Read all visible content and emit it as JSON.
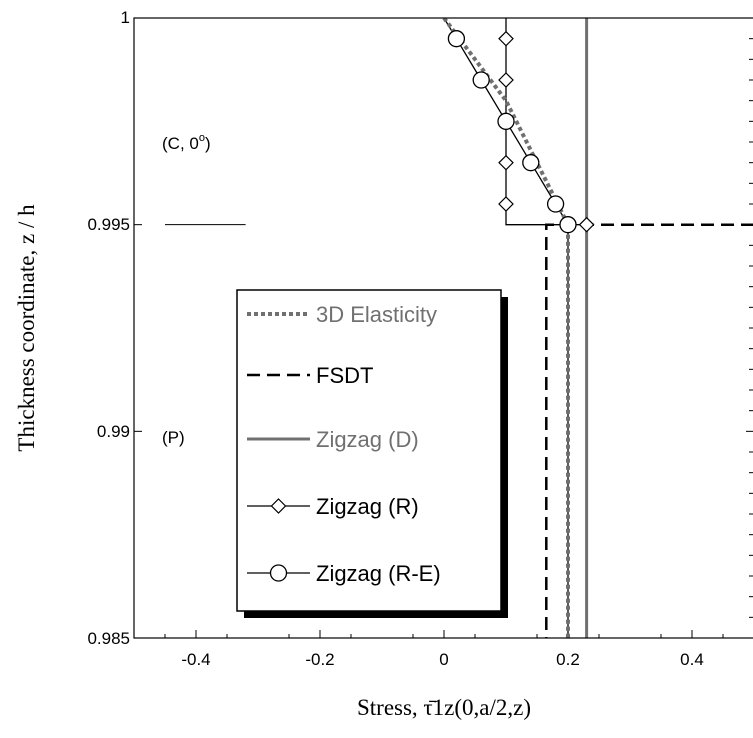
{
  "chart_data": {
    "type": "line",
    "xlabel": "Stress,  τ̄1z(0,a/2,z)",
    "ylabel": "Thickness coordinate, z / h",
    "xlim": [
      -0.5,
      0.5
    ],
    "ylim": [
      0.985,
      1.0
    ],
    "x_ticks": [
      -0.4,
      -0.2,
      0,
      0.2,
      0.4
    ],
    "x_tick_labels": [
      "-0.4",
      "-0.2",
      "0",
      "0.2",
      "0.4"
    ],
    "y_ticks": [
      0.985,
      0.99,
      0.995,
      1.0
    ],
    "y_tick_labels": [
      "0.985",
      "0.99",
      "0.995",
      "1"
    ],
    "annotations": {
      "layer_top": "(C,  0",
      "layer_top_sup": "o",
      "layer_top_close": ")",
      "layer_bottom": "(P)",
      "interface_z": 0.995,
      "interface_line_x": [
        -0.45,
        -0.32
      ]
    },
    "legend": {
      "position": "center-left",
      "entries": [
        {
          "label": "3D Elasticity",
          "style": "dotted",
          "color": "#707070"
        },
        {
          "label": "FSDT",
          "style": "dashed",
          "color": "#000000"
        },
        {
          "label": "Zigzag (D)",
          "style": "solid",
          "color": "#707070"
        },
        {
          "label": "Zigzag (R)",
          "style": "solid-diamond",
          "color": "#000000"
        },
        {
          "label": "Zigzag (R-E)",
          "style": "solid-circle",
          "color": "#000000"
        }
      ]
    },
    "series": [
      {
        "name": "3D Elasticity",
        "x": [
          0.0,
          0.05,
          0.1,
          0.15,
          0.2,
          0.2
        ],
        "y": [
          1.0,
          0.999,
          0.998,
          0.9965,
          0.995,
          0.985
        ]
      },
      {
        "name": "FSDT",
        "x": [
          0.5,
          0.165,
          0.165
        ],
        "y": [
          0.995,
          0.995,
          0.985
        ]
      },
      {
        "name": "Zigzag (D)",
        "x": [
          0.23,
          0.23
        ],
        "y": [
          1.0,
          0.985
        ]
      },
      {
        "name": "Zigzag (R)",
        "x": [
          0.1,
          0.1,
          0.1,
          0.1,
          0.1,
          0.1,
          0.1,
          0.23
        ],
        "y": [
          1.0,
          0.9995,
          0.9985,
          0.9965,
          0.9955,
          0.995,
          0.995,
          0.995
        ]
      },
      {
        "name": "Zigzag (R-E)",
        "x": [
          0.0,
          0.02,
          0.06,
          0.1,
          0.14,
          0.18,
          0.2,
          0.2
        ],
        "y": [
          1.0,
          0.9995,
          0.9985,
          0.9975,
          0.9965,
          0.9955,
          0.995,
          0.985
        ]
      }
    ],
    "markers": {
      "Zigzag (R)": [
        [
          0.1,
          0.9995
        ],
        [
          0.1,
          0.9985
        ],
        [
          0.1,
          0.9965
        ],
        [
          0.1,
          0.9955
        ],
        [
          0.23,
          0.995
        ]
      ],
      "Zigzag (R-E)": [
        [
          0.02,
          0.9995
        ],
        [
          0.06,
          0.9985
        ],
        [
          0.1,
          0.9975
        ],
        [
          0.14,
          0.9965
        ],
        [
          0.18,
          0.9955
        ],
        [
          0.2,
          0.995
        ]
      ]
    }
  }
}
